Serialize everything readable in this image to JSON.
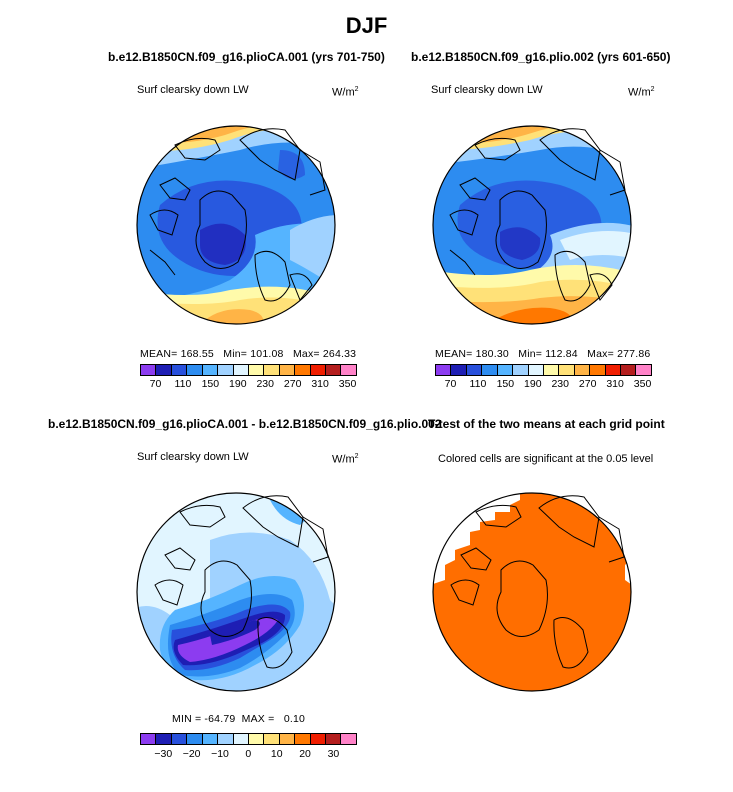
{
  "figure": {
    "title": "DJF",
    "colors": {
      "scale": [
        "#8c3cf0",
        "#1e1eb4",
        "#2850dc",
        "#2d8cf0",
        "#55b4ff",
        "#a0d2ff",
        "#e1f5ff",
        "#fffaaa",
        "#ffe178",
        "#ffb446",
        "#ff7800",
        "#f01e00",
        "#b41e1e",
        "#ff82c8"
      ],
      "diff_scale": [
        "#8c3cf0",
        "#1e1eb4",
        "#2850dc",
        "#2d8cf0",
        "#55b4ff",
        "#a0d2ff",
        "#e1f5ff",
        "#fffaaa",
        "#ffe178",
        "#ffb446",
        "#ff7800",
        "#f01e00",
        "#b41e1e",
        "#ff82c8"
      ],
      "significant": "#ff6e00"
    }
  },
  "panels": [
    {
      "title": "b.e12.B1850CN.f09_g16.plioCA.001 (yrs 701-750)",
      "variable": "Surf clearsky down LW",
      "units": "W/m",
      "units_exp": "2",
      "stats": {
        "mean_label": "MEAN=",
        "mean": "168.55",
        "min_label": "Min=",
        "min": "101.08",
        "max_label": "Max=",
        "max": "264.33"
      },
      "colorbar_labels": [
        "70",
        "110",
        "150",
        "190",
        "230",
        "270",
        "310",
        "350"
      ]
    },
    {
      "title": "b.e12.B1850CN.f09_g16.plio.002 (yrs 601-650)",
      "variable": "Surf clearsky down LW",
      "units": "W/m",
      "units_exp": "2",
      "stats": {
        "mean_label": "MEAN=",
        "mean": "180.30",
        "min_label": "Min=",
        "min": "112.84",
        "max_label": "Max=",
        "max": "277.86"
      },
      "colorbar_labels": [
        "70",
        "110",
        "150",
        "190",
        "230",
        "270",
        "310",
        "350"
      ]
    },
    {
      "title": "b.e12.B1850CN.f09_g16.plioCA.001 - b.e12.B1850CN.f09_g16.plio.002",
      "variable": "Surf clearsky down LW",
      "units": "W/m",
      "units_exp": "2",
      "stats": {
        "min_label": "MIN =",
        "min": "-64.79",
        "max_label": "MAX =",
        "max": "0.10"
      },
      "colorbar_labels": [
        "−30",
        "−20",
        "−10",
        "0",
        "10",
        "20",
        "30"
      ]
    },
    {
      "title": "T-test of the two means at each grid point",
      "variable": "Colored cells are significant at the 0.05 level"
    }
  ]
}
